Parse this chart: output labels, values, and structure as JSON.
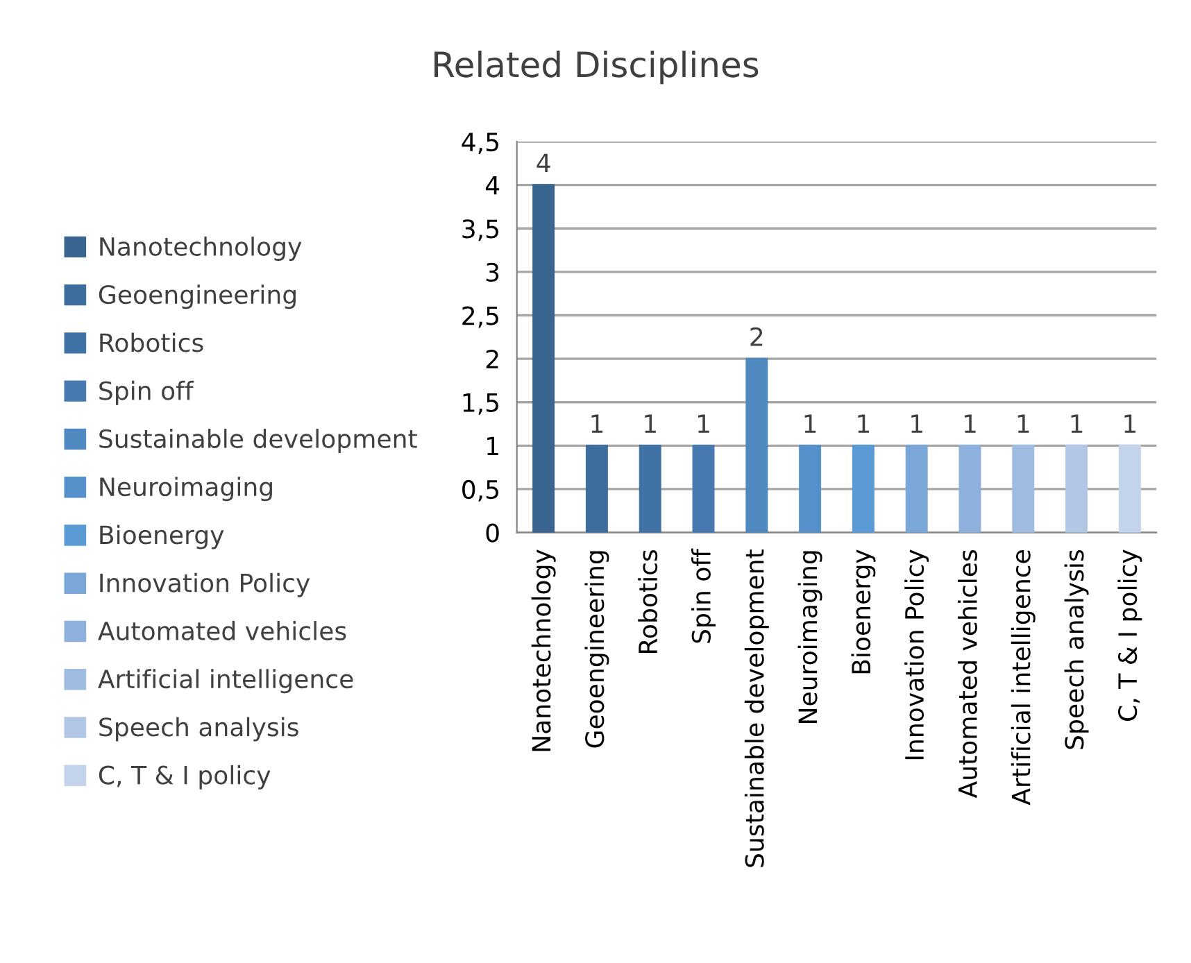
{
  "chart_data": {
    "type": "bar",
    "title": "Related Disciplines",
    "categories": [
      "Nanotechnology",
      "Geoengineering",
      "Robotics",
      "Spin off",
      "Sustainable development",
      "Neuroimaging",
      "Bioenergy",
      "Innovation Policy",
      "Automated vehicles",
      "Artificial intelligence",
      "Speech analysis",
      "C, T & I policy"
    ],
    "series": [
      {
        "name": "Nanotechnology",
        "color": "#3a6590",
        "values": [
          4,
          null,
          null,
          null,
          null,
          null,
          null,
          null,
          null,
          null,
          null,
          null
        ]
      },
      {
        "name": "Geoengineering",
        "color": "#3d6d9c",
        "values": [
          null,
          1,
          null,
          null,
          null,
          null,
          null,
          null,
          null,
          null,
          null,
          null
        ]
      },
      {
        "name": "Robotics",
        "color": "#4072a6",
        "values": [
          null,
          null,
          1,
          null,
          null,
          null,
          null,
          null,
          null,
          null,
          null,
          null
        ]
      },
      {
        "name": "Spin off",
        "color": "#4779b0",
        "values": [
          null,
          null,
          null,
          1,
          null,
          null,
          null,
          null,
          null,
          null,
          null,
          null
        ]
      },
      {
        "name": "Sustainable development",
        "color": "#4f89c0",
        "values": [
          null,
          null,
          null,
          null,
          2,
          null,
          null,
          null,
          null,
          null,
          null,
          null
        ]
      },
      {
        "name": "Neuroimaging",
        "color": "#5590cb",
        "values": [
          null,
          null,
          null,
          null,
          null,
          1,
          null,
          null,
          null,
          null,
          null,
          null
        ]
      },
      {
        "name": "Bioenergy",
        "color": "#5b9bd5",
        "values": [
          null,
          null,
          null,
          null,
          null,
          null,
          1,
          null,
          null,
          null,
          null,
          null
        ]
      },
      {
        "name": "Innovation Policy",
        "color": "#7aa6d8",
        "values": [
          null,
          null,
          null,
          null,
          null,
          null,
          null,
          1,
          null,
          null,
          null,
          null
        ]
      },
      {
        "name": "Automated vehicles",
        "color": "#8eb0dc",
        "values": [
          null,
          null,
          null,
          null,
          null,
          null,
          null,
          null,
          1,
          null,
          null,
          null
        ]
      },
      {
        "name": "Artificial intelligence",
        "color": "#a0bbe0",
        "values": [
          null,
          null,
          null,
          null,
          null,
          null,
          null,
          null,
          null,
          1,
          null,
          null
        ]
      },
      {
        "name": "Speech analysis",
        "color": "#b2c7e6",
        "values": [
          null,
          null,
          null,
          null,
          null,
          null,
          null,
          null,
          null,
          null,
          1,
          null
        ]
      },
      {
        "name": "C, T & I policy",
        "color": "#c3d3ec",
        "values": [
          null,
          null,
          null,
          null,
          null,
          null,
          null,
          null,
          null,
          null,
          null,
          1
        ]
      }
    ],
    "ylim": [
      0,
      4.5
    ],
    "yticks": [
      0,
      {
        "value": 0.5,
        "label": "0,5"
      },
      1,
      {
        "value": 1.5,
        "label": "1,5"
      },
      2,
      {
        "value": 2.5,
        "label": "2,5"
      },
      3,
      {
        "value": 3.5,
        "label": "3,5"
      },
      4,
      {
        "value": 4.5,
        "label": "4,5"
      }
    ],
    "grid": "y",
    "legend": "left",
    "data_labels": true
  }
}
